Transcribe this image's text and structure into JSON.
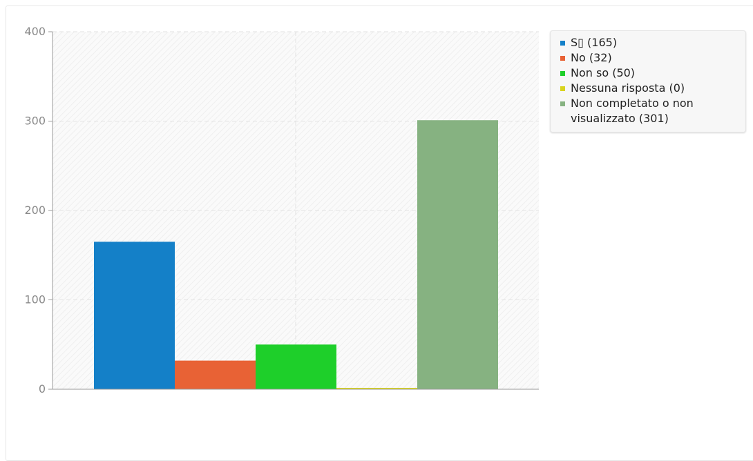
{
  "chart_data": {
    "type": "bar",
    "categories": [
      "S (165)",
      "No (32)",
      "Non so (50)",
      "Nessuna risposta (0)",
      "Non completato o non visualizzato (301)"
    ],
    "values": [
      165,
      32,
      50,
      0,
      301
    ],
    "colors": [
      "#1480c8",
      "#e86235",
      "#1ecf2a",
      "#d9d41e",
      "#86b281"
    ],
    "ylim": [
      0,
      400
    ],
    "yticks": [
      0,
      100,
      200,
      300,
      400
    ],
    "grid": true,
    "legend_position": "right"
  },
  "legend": {
    "items": [
      {
        "label": "S▯ (165)",
        "color": "#1480c8"
      },
      {
        "label": "No (32)",
        "color": "#e86235"
      },
      {
        "label": "Non so (50)",
        "color": "#1ecf2a"
      },
      {
        "label": "Nessuna risposta (0)",
        "color": "#d9d41e"
      },
      {
        "label": "Non completato o non visualizzato (301)",
        "color": "#86b281"
      }
    ]
  }
}
